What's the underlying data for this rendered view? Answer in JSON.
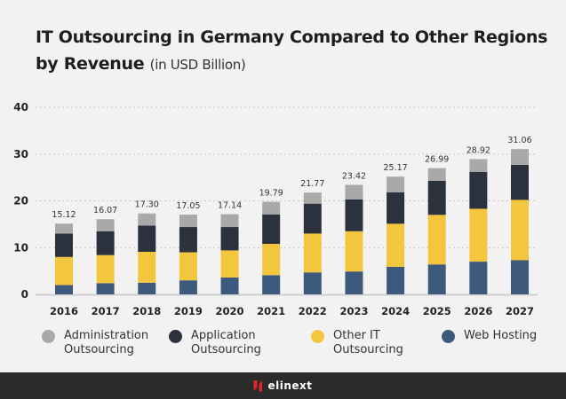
{
  "chart_data": {
    "type": "bar",
    "stacked": true,
    "title": "IT Outsourcing in Germany Compared to Other Regions by Revenue",
    "subtitle": "(in USD Billion)",
    "xlabel": "",
    "ylabel": "",
    "ylim": [
      0,
      40
    ],
    "yticks": [
      0,
      10,
      20,
      30,
      40
    ],
    "grid": true,
    "legend_position": "bottom",
    "categories": [
      "2016",
      "2017",
      "2018",
      "2019",
      "2020",
      "2021",
      "2022",
      "2023",
      "2024",
      "2025",
      "2026",
      "2027"
    ],
    "totals": [
      "15.12",
      "16.07",
      "17.30",
      "17.05",
      "17.14",
      "19.79",
      "21.77",
      "23.42",
      "25.17",
      "26.99",
      "28.92",
      "31.06"
    ],
    "series": [
      {
        "name": "Web Hosting",
        "color": "#3d5a7d",
        "values": [
          2.0,
          2.4,
          2.5,
          3.0,
          3.6,
          4.1,
          4.7,
          4.9,
          5.9,
          6.4,
          7.0,
          7.3
        ]
      },
      {
        "name": "Other IT Outsourcing",
        "color": "#f4c63d",
        "values": [
          6.0,
          6.0,
          6.6,
          6.0,
          5.8,
          6.7,
          8.3,
          8.6,
          9.2,
          10.6,
          11.3,
          12.9
        ]
      },
      {
        "name": "Application Outsourcing",
        "color": "#2b313d",
        "values": [
          5.0,
          5.1,
          5.6,
          5.4,
          5.0,
          6.3,
          6.4,
          6.8,
          6.7,
          7.3,
          7.9,
          7.5
        ]
      },
      {
        "name": "Administration Outsourcing",
        "color": "#a9a9a9",
        "values": [
          2.12,
          2.57,
          2.6,
          2.65,
          2.74,
          2.69,
          2.37,
          3.12,
          3.37,
          2.69,
          2.72,
          3.36
        ]
      }
    ]
  },
  "legend": [
    {
      "label": "Administration\nOutsourcing",
      "color": "#a9a9a9"
    },
    {
      "label": "Application\nOutsourcing",
      "color": "#2b313d"
    },
    {
      "label": "Other IT\nOutsourcing",
      "color": "#f4c63d"
    },
    {
      "label": "Web Hosting",
      "color": "#3d5a7d"
    }
  ],
  "footer": {
    "logo": "elinext"
  }
}
